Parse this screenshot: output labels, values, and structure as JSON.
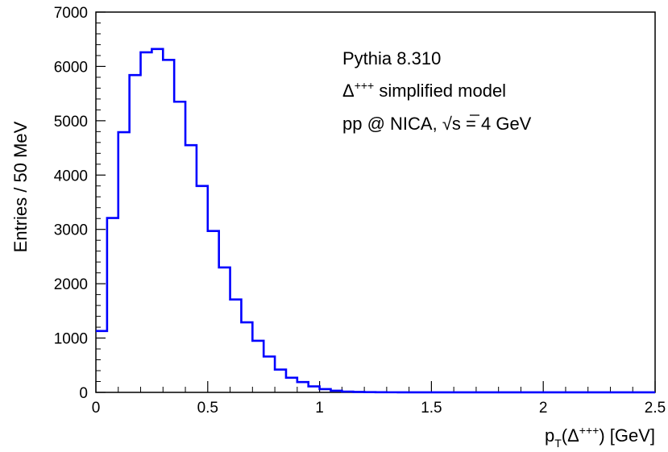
{
  "chart_data": {
    "type": "histogram",
    "xlabel": {
      "base": "p",
      "sub": "T",
      "open": "(Δ",
      "sup": "+++",
      "close": ") [GeV]"
    },
    "ylabel": "Entries / 50 MeV",
    "xlim": [
      0,
      2.5
    ],
    "ylim": [
      0,
      7000
    ],
    "xticks": [
      0,
      0.5,
      1,
      1.5,
      2,
      2.5
    ],
    "xtick_labels": [
      "0",
      "0.5",
      "1",
      "1.5",
      "2",
      "2.5"
    ],
    "yticks": [
      0,
      1000,
      2000,
      3000,
      4000,
      5000,
      6000,
      7000
    ],
    "ytick_labels": [
      "0",
      "1000",
      "2000",
      "3000",
      "4000",
      "5000",
      "6000",
      "7000"
    ],
    "bin_width": 0.05,
    "bins_start": 0,
    "values": [
      1130,
      3210,
      4790,
      5840,
      6260,
      6320,
      6120,
      5350,
      4550,
      3800,
      2970,
      2300,
      1710,
      1290,
      950,
      660,
      420,
      270,
      190,
      110,
      60,
      30,
      15,
      8,
      5,
      3,
      2,
      1,
      1,
      1,
      1,
      1,
      1,
      1,
      1,
      1,
      1,
      1,
      1,
      1,
      1,
      1,
      1,
      1,
      1,
      1,
      1,
      1,
      1,
      1
    ],
    "line_color": "#0000ff",
    "grid": false,
    "annotations": [
      {
        "text": "Pythia 8.310"
      },
      {
        "prefix": "Δ",
        "sup": "+++",
        "suffix": " simplified model"
      },
      {
        "prefix": "pp @ NICA, ",
        "sqrt_arg": "s",
        "suffix": " = 4 GeV"
      }
    ]
  }
}
